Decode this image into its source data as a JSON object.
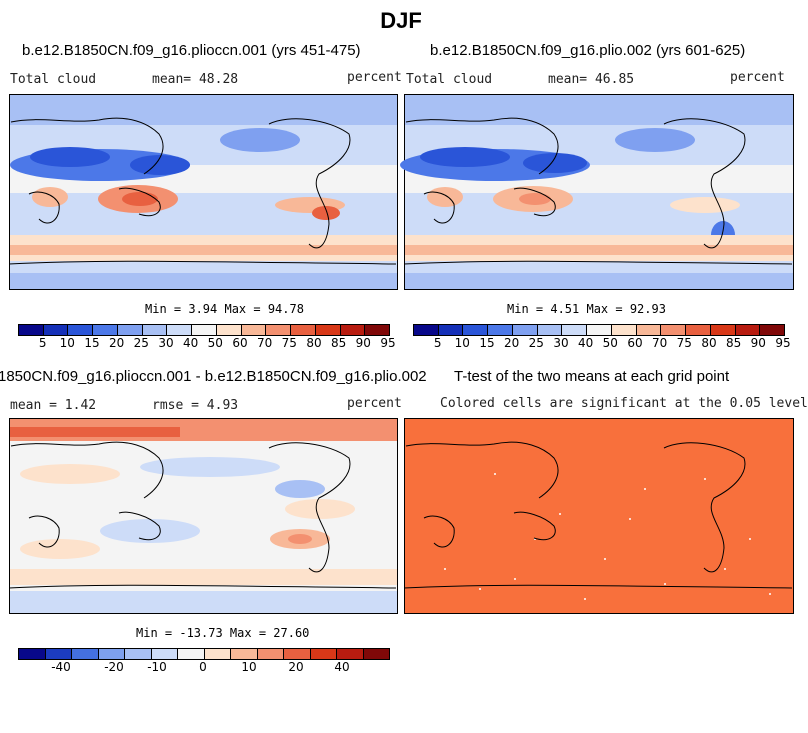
{
  "figure": {
    "season": "DJF"
  },
  "panels": {
    "tl": {
      "title": "b.e12.B1850CN.f09_g16.plioccn.001 (yrs 451-475)",
      "left": "Total cloud",
      "mean": "mean=  48.28",
      "unit": "percent",
      "stats": "Min =   3.94 Max =  94.78"
    },
    "tr": {
      "title": "b.e12.B1850CN.f09_g16.plio.002 (yrs 601-625)",
      "left": "Total cloud",
      "mean": "mean=  46.85",
      "unit": "percent",
      "stats": "Min =   4.51 Max =  92.93"
    },
    "bl": {
      "title": "1850CN.f09_g16.plioccn.001 - b.e12.B1850CN.f09_g16.plio.002",
      "mean": "mean =   1.42",
      "rmse": "rmse =   4.93",
      "unit": "percent",
      "stats": "Min = -13.73 Max =  27.60"
    },
    "br": {
      "title": "T-test of the two means at each grid point",
      "note": "Colored cells are significant at the 0.05 level"
    }
  },
  "colorbars": {
    "absolute": {
      "labels": [
        "5",
        "10",
        "15",
        "20",
        "25",
        "30",
        "40",
        "50",
        "60",
        "70",
        "75",
        "80",
        "85",
        "90",
        "95"
      ]
    },
    "difference": {
      "labels": [
        "-40",
        "-20",
        "-10",
        "0",
        "10",
        "20",
        "40"
      ]
    }
  },
  "colors": {
    "abs": [
      "#08088a",
      "#1530b8",
      "#2a55d8",
      "#4c78e8",
      "#7fa0f0",
      "#a8c0f4",
      "#cddcf8",
      "#f4f4f4",
      "#fde2cc",
      "#f8b898",
      "#f39070",
      "#e86040",
      "#d83818",
      "#b81c10",
      "#800808"
    ],
    "diff": [
      "#08088a",
      "#1c3cc0",
      "#4470e0",
      "#7ea0ee",
      "#a8c0f4",
      "#cddcf8",
      "#f4f4f4",
      "#fde2cc",
      "#f8b898",
      "#f39070",
      "#e86040",
      "#d83818",
      "#b81c10",
      "#800808"
    ],
    "ttest": "#f8703c"
  }
}
